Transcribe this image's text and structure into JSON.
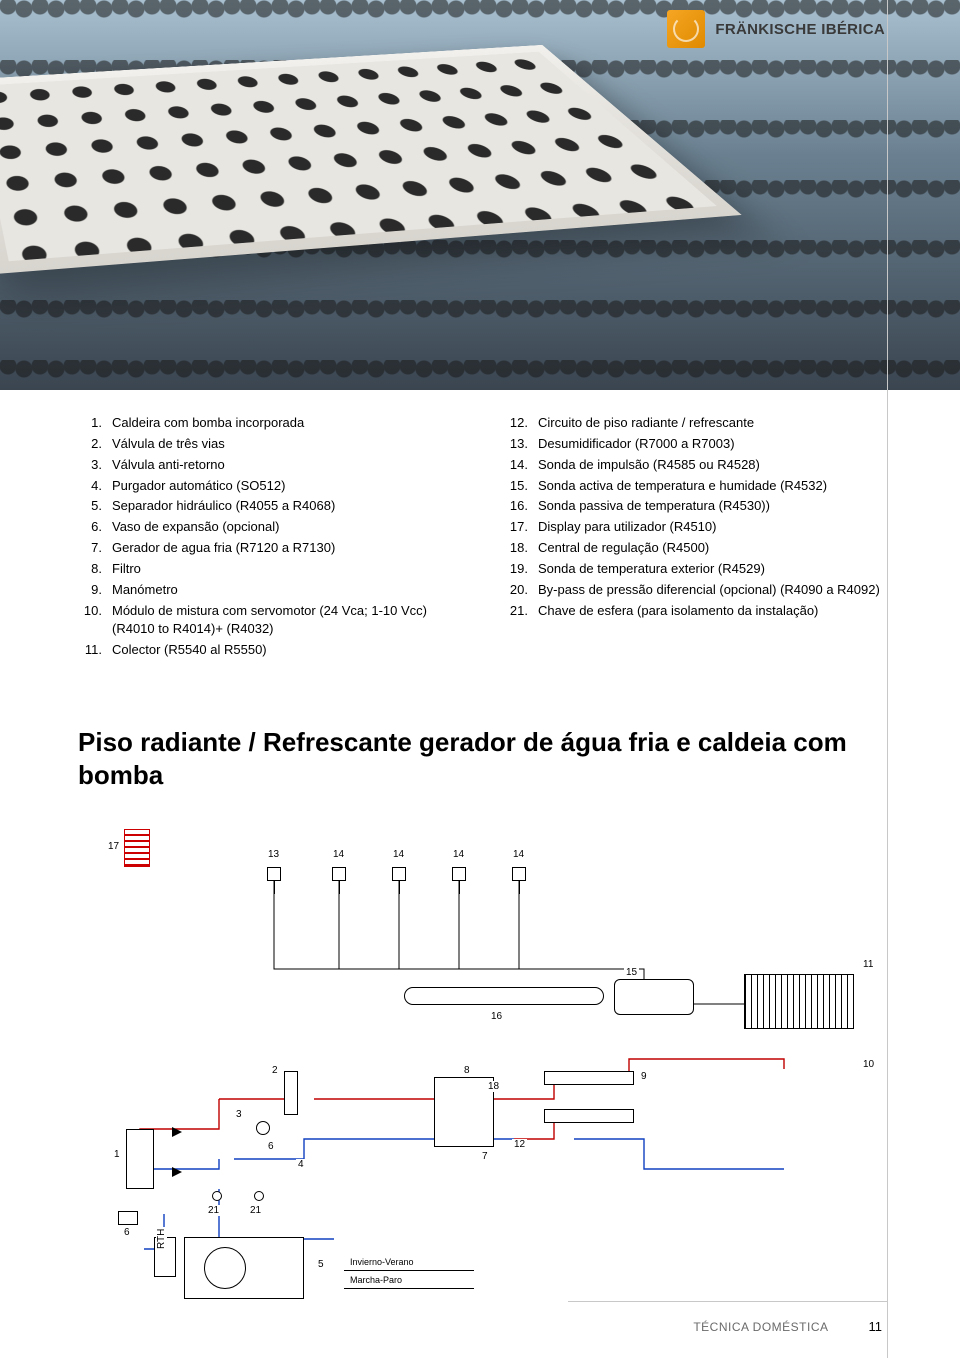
{
  "brand": "FRÄNKISCHE IBÉRICA",
  "legend_left": [
    {
      "n": "1.",
      "t": "Caldeira com bomba incorporada"
    },
    {
      "n": "2.",
      "t": "Válvula de três vias"
    },
    {
      "n": "3.",
      "t": "Válvula anti-retorno"
    },
    {
      "n": "4.",
      "t": "Purgador automático (SO512)"
    },
    {
      "n": "5.",
      "t": "Separador hidráulico (R4055 a R4068)"
    },
    {
      "n": "6.",
      "t": "Vaso de expansão (opcional)"
    },
    {
      "n": "7.",
      "t": "Gerador de agua fria (R7120 a R7130)"
    },
    {
      "n": "8.",
      "t": "Filtro"
    },
    {
      "n": "9.",
      "t": "Manómetro"
    },
    {
      "n": "10.",
      "t": "Módulo de mistura com servomotor (24 Vca; 1-10 Vcc) (R4010 to R4014)+ (R4032)"
    },
    {
      "n": "11.",
      "t": "Colector (R5540 al R5550)"
    }
  ],
  "legend_right": [
    {
      "n": "12.",
      "t": "Circuito de piso radiante / refrescante"
    },
    {
      "n": "13.",
      "t": "Desumidificador (R7000 a R7003)"
    },
    {
      "n": "14.",
      "t": "Sonda de impulsão (R4585 ou R4528)"
    },
    {
      "n": "15.",
      "t": "Sonda activa de temperatura e humidade (R4532)"
    },
    {
      "n": "16.",
      "t": "Sonda passiva de temperatura (R4530))"
    },
    {
      "n": "17.",
      "t": "Display para utilizador (R4510)"
    },
    {
      "n": "18.",
      "t": "Central de regulação (R4500)"
    },
    {
      "n": "19.",
      "t": "Sonda de temperatura exterior (R4529)"
    },
    {
      "n": "20.",
      "t": "By-pass de pressão diferencial (opcional) (R4090 a R4092)"
    },
    {
      "n": "21.",
      "t": "Chave de esfera (para isolamento da instalação)"
    }
  ],
  "title": "Piso radiante / Refrescante gerador de água fria e caldeia com bomba",
  "diagram_labels": {
    "l17": "17",
    "l13": "13",
    "l14a": "14",
    "l14b": "14",
    "l14c": "14",
    "l14d": "14",
    "l11": "11",
    "l15": "15",
    "l16": "16",
    "l10": "10",
    "l2": "2",
    "l8": "8",
    "l18": "18",
    "l9": "9",
    "l3": "3",
    "l6": "6",
    "l4": "4",
    "l7": "7",
    "l12": "12",
    "l1": "1",
    "l21a": "21",
    "l21b": "21",
    "l6b": "6",
    "l5": "5",
    "switch1": "Invierno-Verano",
    "switch2": "Marcha-Paro",
    "rth": "RTH"
  },
  "footer_label": "TÉCNICA DOMÉSTICA",
  "footer_page": "11",
  "colors": {
    "brand_orange": "#e08a00",
    "pipe_red": "#c00000",
    "pipe_blue": "#1040c0",
    "rule": "#c8c8c8"
  }
}
